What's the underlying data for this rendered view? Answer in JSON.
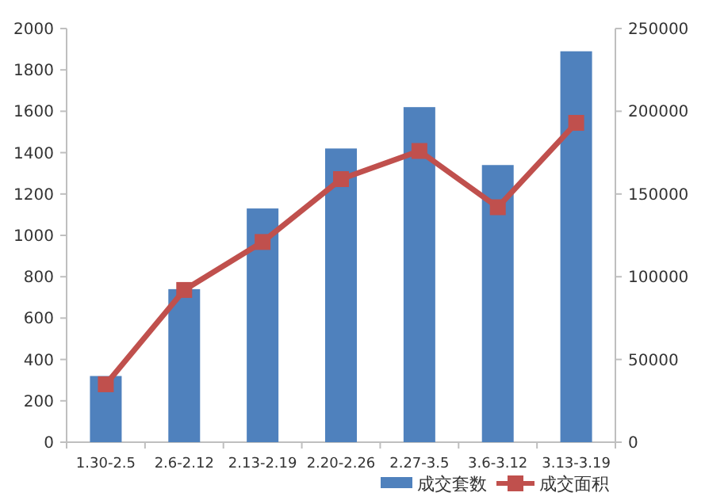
{
  "chart_data": {
    "type": "bar",
    "categories": [
      "1.30-2.5",
      "2.6-2.12",
      "2.13-2.19",
      "2.20-2.26",
      "2.27-3.5",
      "3.6-3.12",
      "3.13-3.19"
    ],
    "series": [
      {
        "name": "成交套数",
        "color": "#4f81bd",
        "values": [
          320,
          740,
          1130,
          1420,
          1620,
          1340,
          1890
        ]
      },
      {
        "name": "成交面积",
        "type": "line",
        "axis": "y2",
        "color": "#c0504d",
        "marker": "square",
        "values": [
          35000,
          92000,
          121000,
          159000,
          176000,
          142000,
          193000
        ]
      }
    ],
    "ylim": [
      0,
      2000
    ],
    "yticks": [
      0,
      200,
      400,
      600,
      800,
      1000,
      1200,
      1400,
      1600,
      1800,
      2000
    ],
    "y2lim": [
      0,
      250000
    ],
    "y2ticks": [
      0,
      50000,
      100000,
      150000,
      200000,
      250000
    ],
    "legend": "bottom right",
    "grid": false
  }
}
